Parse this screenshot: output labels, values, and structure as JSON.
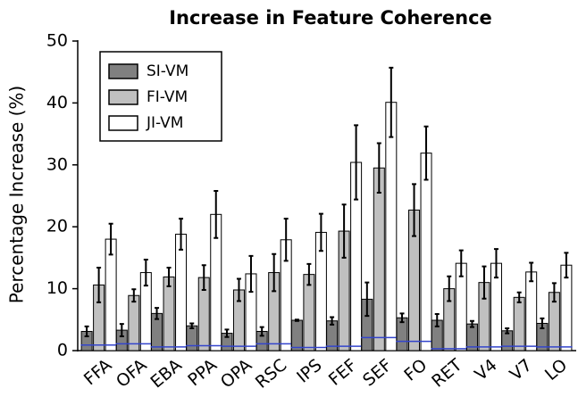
{
  "chart_data": {
    "type": "bar",
    "title": "Increase in Feature Coherence",
    "y_label": "Percentage Increase (%)",
    "categories": [
      "FFA",
      "OFA",
      "EBA",
      "PPA",
      "OPA",
      "RSC",
      "IPS",
      "FEF",
      "SEF",
      "FO",
      "RET",
      "V4",
      "V7",
      "LO"
    ],
    "series": [
      {
        "name": "SI-VM",
        "color": "#808080",
        "values": [
          3.1,
          3.3,
          6.0,
          4.0,
          2.8,
          3.1,
          4.9,
          4.8,
          8.3,
          5.3,
          4.9,
          4.3,
          3.2,
          4.4
        ],
        "errors": [
          0.8,
          1.0,
          0.9,
          0.4,
          0.6,
          0.7,
          0.1,
          0.6,
          2.7,
          0.7,
          1.0,
          0.5,
          0.4,
          0.8
        ]
      },
      {
        "name": "FI-VM",
        "color": "#c0c0c0",
        "values": [
          10.6,
          8.9,
          11.9,
          11.8,
          9.8,
          12.6,
          12.3,
          19.3,
          29.5,
          22.7,
          10.0,
          11.0,
          8.6,
          9.4
        ],
        "errors": [
          2.8,
          1.0,
          1.5,
          2.0,
          1.8,
          3.0,
          1.7,
          4.3,
          4.0,
          4.2,
          2.0,
          2.6,
          0.8,
          1.5
        ]
      },
      {
        "name": "JI-VM",
        "color": "#ffffff",
        "values": [
          18.0,
          12.6,
          18.8,
          22.0,
          12.4,
          17.9,
          19.1,
          30.4,
          40.1,
          31.9,
          14.1,
          14.1,
          12.7,
          13.8
        ],
        "errors": [
          2.5,
          2.1,
          2.5,
          3.8,
          2.9,
          3.4,
          3.0,
          6.0,
          5.6,
          4.3,
          2.1,
          2.3,
          1.5,
          2.0
        ]
      }
    ],
    "reference_lines": {
      "color": "#3344cc",
      "values": [
        0.9,
        1.1,
        0.6,
        0.8,
        0.7,
        1.1,
        0.5,
        0.7,
        2.1,
        1.5,
        0.3,
        0.6,
        0.7,
        0.6
      ]
    },
    "ylim": [
      0,
      50
    ],
    "yticks": [
      0,
      10,
      20,
      30,
      40,
      50
    ],
    "grid": false,
    "legend": "upper left"
  }
}
